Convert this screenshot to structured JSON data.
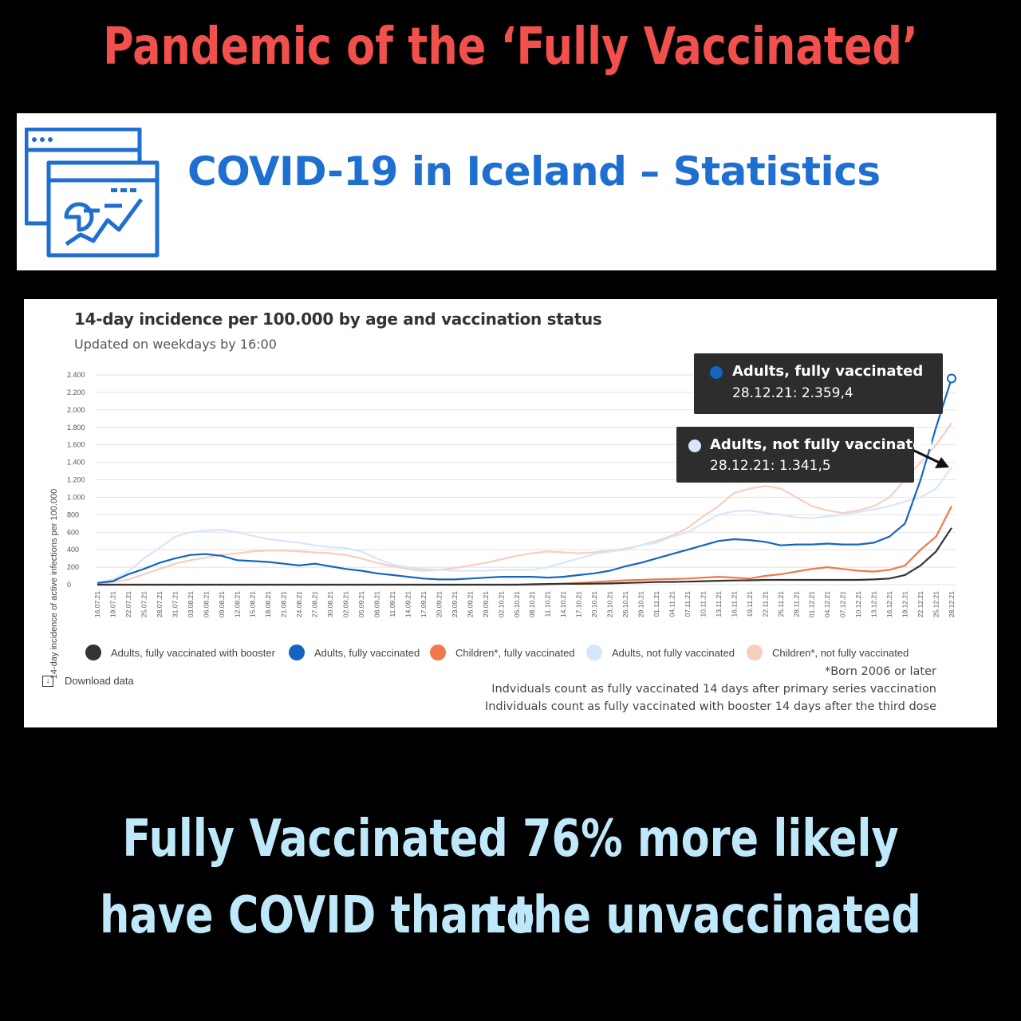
{
  "headline": "Pandemic of the ‘Fully Vaccinated’",
  "headline_color": "#f2504c",
  "banner": {
    "title": "COVID-19 in Iceland – Statistics",
    "title_color": "#1e6fd0",
    "icon": "dashboard-chart-icon"
  },
  "caption": {
    "line1": "Fully Vaccinated 76% more likely to",
    "line2": "have COVID than the unvaccinated",
    "color": "#bfe8fb"
  },
  "download_label": "Download data",
  "download_icon": "download-icon",
  "tooltips": [
    {
      "series": "Adults, fully vaccinated",
      "value": "28.12.21: 2.359,4",
      "color": "#1565c0"
    },
    {
      "series": "Adults, not fully vaccinated",
      "value": "28.12.21: 1.341,5",
      "color": "#d7e6fa"
    }
  ],
  "notes": [
    "*Born 2006 or later",
    "Indviduals count as fully vaccinated 14 days after primary series vaccination",
    "Individuals count as fully vaccinated with booster 14 days after the third dose"
  ],
  "chart_data": {
    "type": "line",
    "title": "14-day incidence per 100.000 by age and vaccination status",
    "subtitle": "Updated on weekdays by 16:00",
    "ylabel": "14-day incidence of active infections per 100.000",
    "ylim": [
      0,
      2400
    ],
    "yticks": [
      0,
      200,
      400,
      600,
      800,
      1000,
      1200,
      1400,
      1600,
      1800,
      2000,
      2200,
      2400
    ],
    "ytick_labels": [
      "0",
      "200",
      "400",
      "600",
      "800",
      "1.000",
      "1.200",
      "1.400",
      "1.600",
      "1.800",
      "2.000",
      "2.200",
      "2.400"
    ],
    "x": [
      "16.07.21",
      "19.07.21",
      "22.07.21",
      "25.07.21",
      "28.07.21",
      "31.07.21",
      "03.08.21",
      "06.08.21",
      "09.08.21",
      "12.08.21",
      "15.08.21",
      "18.08.21",
      "21.08.21",
      "24.08.21",
      "27.08.21",
      "30.08.21",
      "02.09.21",
      "05.09.21",
      "08.09.21",
      "11.09.21",
      "14.09.21",
      "17.09.21",
      "20.09.21",
      "23.09.21",
      "26.09.21",
      "29.09.21",
      "02.10.21",
      "05.10.21",
      "08.10.21",
      "11.10.21",
      "14.10.21",
      "17.10.21",
      "20.10.21",
      "23.10.21",
      "26.10.21",
      "29.10.21",
      "01.11.21",
      "04.11.21",
      "07.11.21",
      "10.11.21",
      "13.11.21",
      "16.11.21",
      "19.11.21",
      "22.11.21",
      "25.11.21",
      "28.11.21",
      "01.12.21",
      "04.12.21",
      "07.12.21",
      "10.12.21",
      "13.12.21",
      "16.12.21",
      "19.12.21",
      "22.12.21",
      "25.12.21",
      "28.12.21"
    ],
    "legend_position": "bottom",
    "grid": true,
    "series": [
      {
        "name": "Adults, fully vaccinated with booster",
        "color": "#333333",
        "values": [
          0,
          0,
          0,
          0,
          0,
          0,
          0,
          0,
          0,
          0,
          0,
          0,
          0,
          0,
          0,
          0,
          0,
          0,
          0,
          0,
          0,
          0,
          0,
          0,
          0,
          0,
          0,
          0,
          5,
          8,
          10,
          10,
          12,
          15,
          20,
          25,
          30,
          32,
          35,
          40,
          45,
          48,
          50,
          55,
          55,
          55,
          55,
          55,
          55,
          55,
          60,
          70,
          110,
          220,
          380,
          650
        ]
      },
      {
        "name": "Adults, fully vaccinated",
        "color": "#1565c0",
        "values": [
          20,
          40,
          120,
          180,
          250,
          300,
          340,
          350,
          330,
          280,
          270,
          260,
          240,
          220,
          240,
          210,
          180,
          160,
          130,
          110,
          90,
          70,
          60,
          60,
          70,
          80,
          90,
          90,
          90,
          80,
          90,
          110,
          130,
          160,
          210,
          250,
          300,
          350,
          400,
          450,
          500,
          520,
          510,
          490,
          450,
          460,
          460,
          470,
          460,
          460,
          480,
          550,
          700,
          1200,
          1800,
          2359
        ]
      },
      {
        "name": "Children*, fully vaccinated",
        "color": "#f1784a",
        "values": [
          0,
          0,
          0,
          0,
          0,
          0,
          0,
          0,
          0,
          0,
          0,
          0,
          0,
          0,
          0,
          0,
          0,
          0,
          0,
          0,
          0,
          0,
          0,
          0,
          0,
          0,
          0,
          0,
          0,
          5,
          10,
          20,
          30,
          40,
          50,
          55,
          60,
          65,
          70,
          80,
          90,
          80,
          70,
          100,
          120,
          150,
          180,
          200,
          180,
          160,
          150,
          170,
          220,
          400,
          550,
          900
        ]
      },
      {
        "name": "Adults, not fully vaccinated",
        "color": "#d7e6fa",
        "values": [
          20,
          60,
          150,
          300,
          420,
          550,
          600,
          620,
          630,
          600,
          560,
          520,
          500,
          480,
          450,
          430,
          420,
          380,
          300,
          230,
          200,
          180,
          170,
          160,
          160,
          160,
          170,
          170,
          170,
          200,
          250,
          300,
          350,
          380,
          400,
          450,
          480,
          550,
          600,
          700,
          800,
          840,
          850,
          820,
          800,
          770,
          760,
          780,
          800,
          830,
          860,
          900,
          950,
          1000,
          1100,
          1341
        ]
      },
      {
        "name": "Children*, not fully vaccinated",
        "color": "#f7cfc0",
        "values": [
          0,
          30,
          60,
          120,
          180,
          240,
          280,
          310,
          340,
          360,
          380,
          390,
          390,
          380,
          370,
          360,
          340,
          300,
          250,
          210,
          180,
          160,
          170,
          190,
          220,
          250,
          290,
          330,
          360,
          380,
          370,
          360,
          370,
          390,
          410,
          450,
          500,
          560,
          650,
          780,
          900,
          1050,
          1100,
          1130,
          1100,
          1000,
          900,
          850,
          820,
          850,
          900,
          1000,
          1200,
          1400,
          1600,
          1850
        ]
      }
    ]
  }
}
